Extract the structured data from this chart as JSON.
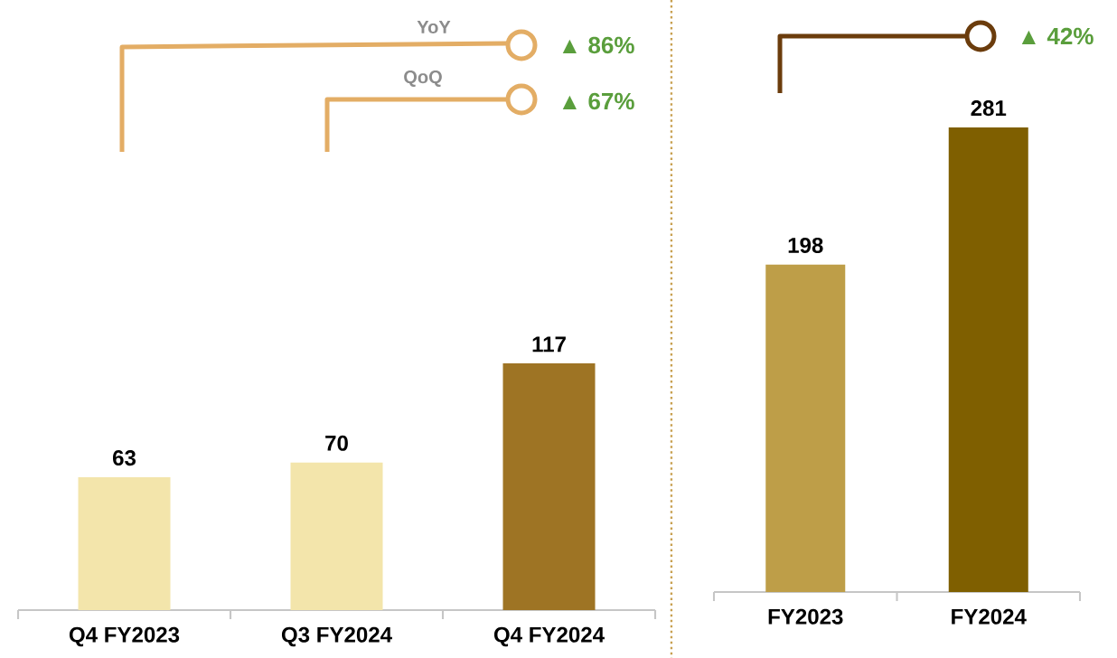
{
  "chart_data": [
    {
      "type": "bar",
      "categories": [
        "Q4 FY2023",
        "Q3 FY2024",
        "Q4 FY2024"
      ],
      "values": [
        63,
        70,
        117
      ],
      "colors": [
        "#f3e5ab",
        "#f3e5ab",
        "#9e7424"
      ],
      "data_labels": true,
      "annotations": [
        "YoY",
        "▲ 86%",
        "QoQ",
        "▲ 67%"
      ]
    },
    {
      "type": "bar",
      "categories": [
        "FY2023",
        "FY2024"
      ],
      "values": [
        198,
        281
      ],
      "colors": [
        "#be9e48",
        "#7f5f00"
      ],
      "data_labels": true,
      "annotations": [
        "▲ 42%"
      ]
    }
  ]
}
